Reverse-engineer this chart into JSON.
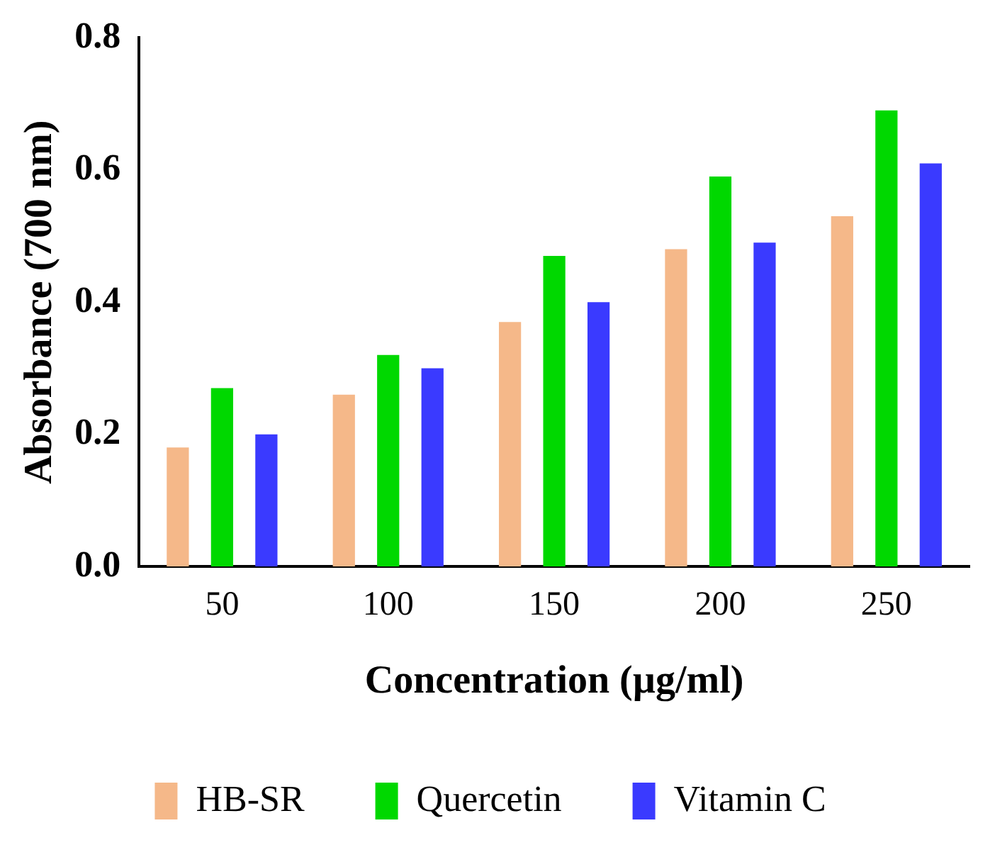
{
  "chart_data": {
    "type": "bar",
    "xlabel": "Concentration (µg/ml)",
    "ylabel": "Absorbance (700 nm)",
    "categories": [
      "50",
      "100",
      "150",
      "200",
      "250"
    ],
    "series": [
      {
        "name": "HB-SR",
        "color": "#f5b889",
        "values": [
          0.18,
          0.26,
          0.37,
          0.48,
          0.53
        ]
      },
      {
        "name": "Quercetin",
        "color": "#00d800",
        "values": [
          0.27,
          0.32,
          0.47,
          0.59,
          0.69
        ]
      },
      {
        "name": "Vitamin C",
        "color": "#3a3aff",
        "values": [
          0.2,
          0.3,
          0.4,
          0.49,
          0.61
        ]
      }
    ],
    "ylim": [
      0,
      0.8
    ],
    "yticks": [
      {
        "value": 0,
        "label": "0.0"
      },
      {
        "value": 0.2,
        "label": "0.2"
      },
      {
        "value": 0.4,
        "label": "0.4"
      },
      {
        "value": 0.6,
        "label": "0.6"
      },
      {
        "value": 0.8,
        "label": "0.8"
      }
    ],
    "grid": false,
    "legend": "bottom"
  }
}
